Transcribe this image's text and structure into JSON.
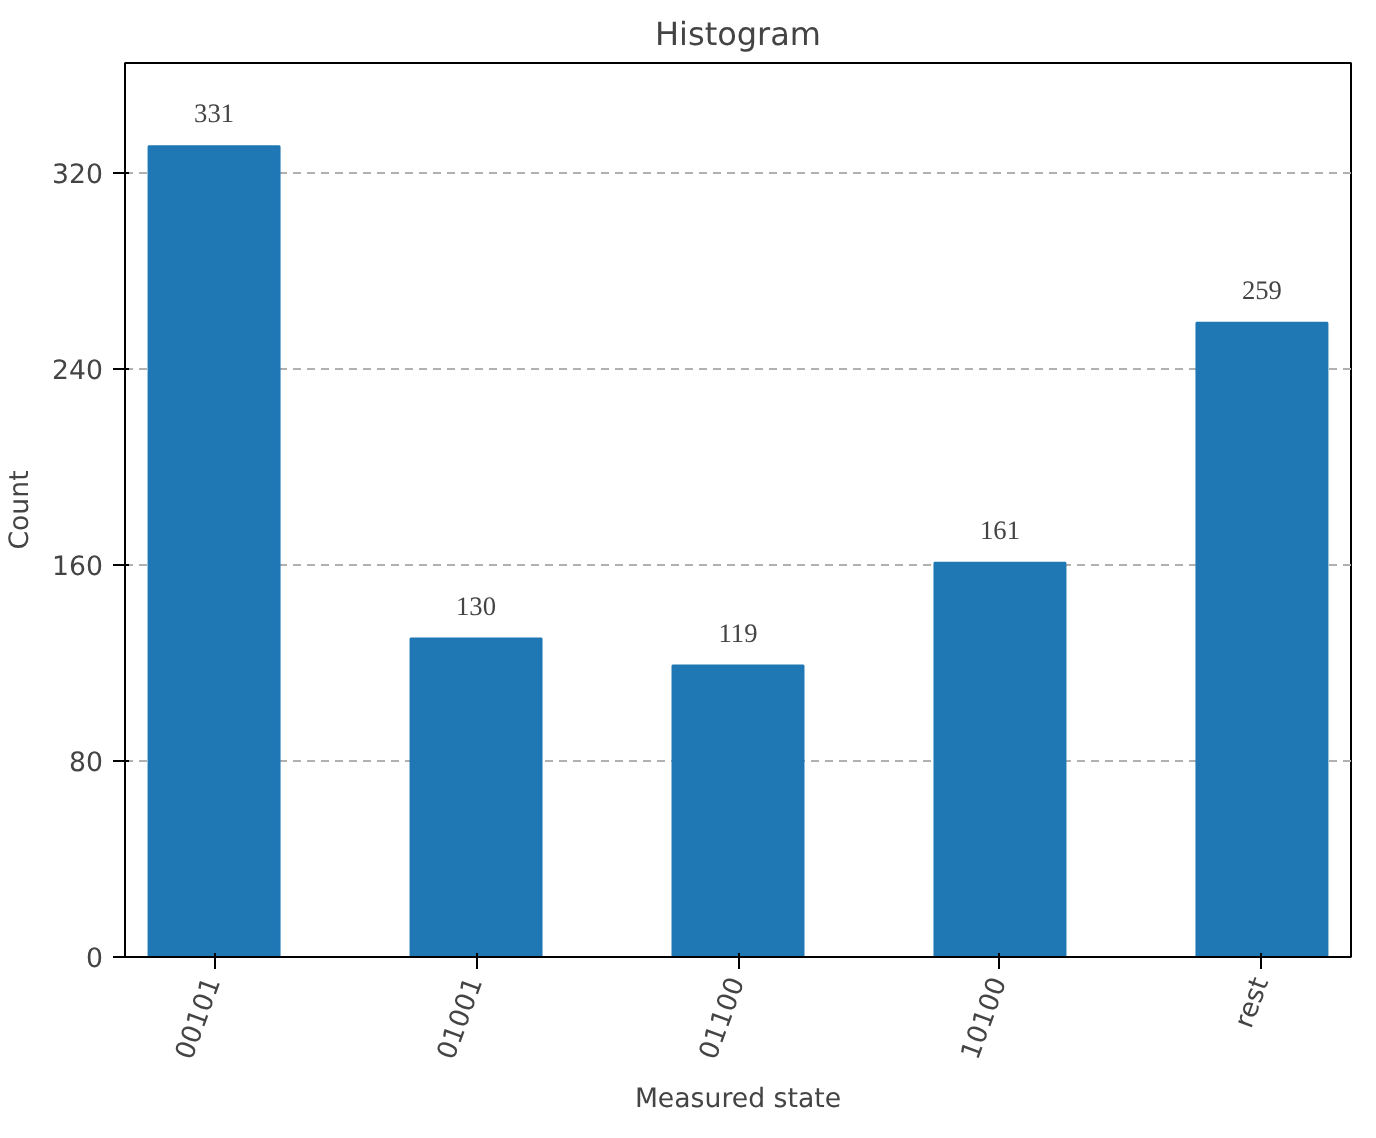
{
  "chart_data": {
    "type": "bar",
    "title": "Histogram",
    "xlabel": "Measured state",
    "ylabel": "Count",
    "categories": [
      "00101",
      "01001",
      "01100",
      "10100",
      "rest"
    ],
    "values": [
      331,
      130,
      119,
      161,
      259
    ],
    "color": "#1f77b4",
    "ylim": [
      0,
      365
    ],
    "yticks": [
      0,
      80,
      160,
      240,
      320
    ],
    "grid": "y",
    "data_labels": true
  }
}
